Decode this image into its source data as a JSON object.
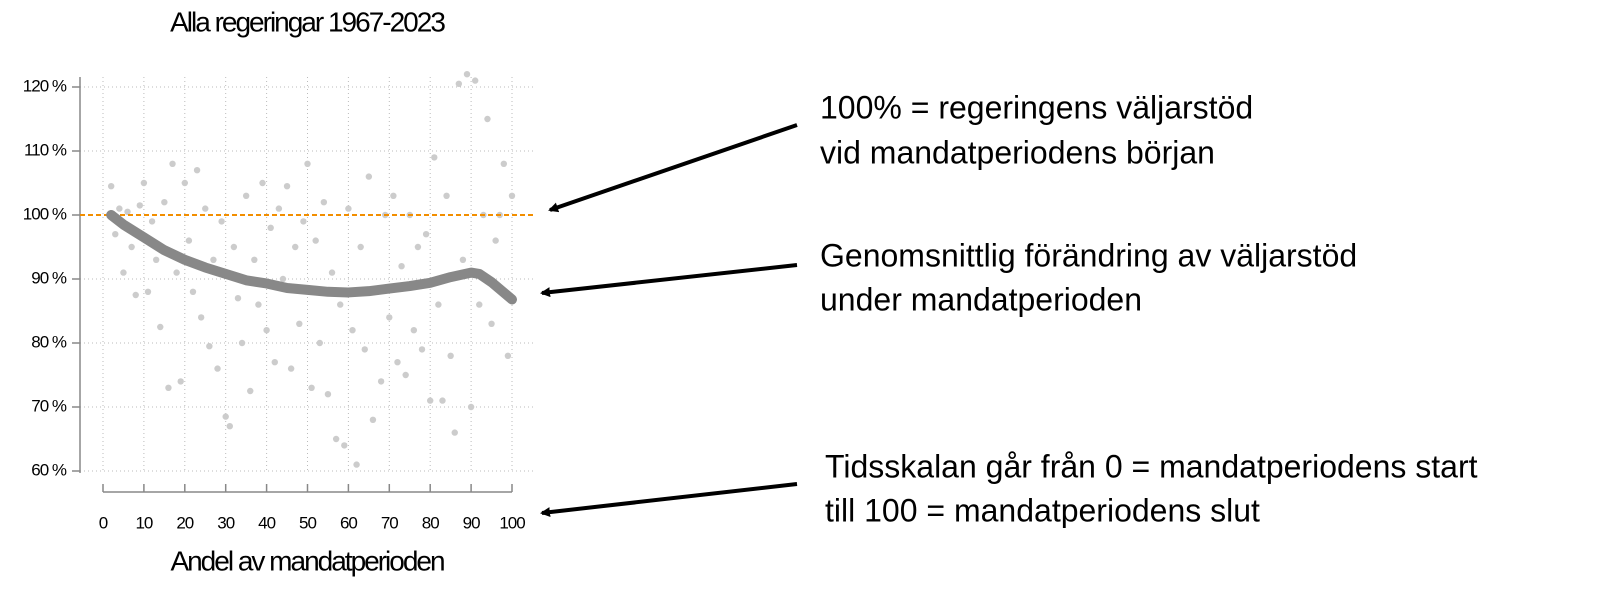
{
  "chart_data": {
    "type": "scatter",
    "title": "Alla regeringar 1967-2023",
    "x_label": "Andel av mandatperioden",
    "xlim": [
      0,
      100
    ],
    "ylim": [
      60,
      120
    ],
    "xticks": [
      0,
      10,
      20,
      30,
      40,
      50,
      60,
      70,
      80,
      90,
      100
    ],
    "yticks": [
      {
        "value": 60,
        "label": "60 %"
      },
      {
        "value": 70,
        "label": "70 %"
      },
      {
        "value": 80,
        "label": "80 %"
      },
      {
        "value": 90,
        "label": "90 %"
      },
      {
        "value": 100,
        "label": "100 %"
      },
      {
        "value": 110,
        "label": "110 %"
      },
      {
        "value": 120,
        "label": "120 %"
      }
    ],
    "grid": true,
    "reference_line": {
      "value": 100,
      "color": "#f28e00"
    },
    "series": [
      {
        "color": "#cccccc",
        "x": [
          2,
          3,
          4,
          5,
          6,
          7,
          8,
          9,
          10,
          11,
          12,
          13,
          14,
          15,
          16,
          17,
          18,
          19,
          20,
          21,
          22,
          23,
          24,
          25,
          26,
          27,
          28,
          29,
          30,
          31,
          32,
          33,
          34,
          35,
          36,
          37,
          38,
          39,
          40,
          41,
          42,
          43,
          44,
          45,
          46,
          47,
          48,
          49,
          50,
          51,
          52,
          53,
          54,
          55,
          56,
          57,
          58,
          59,
          60,
          61,
          62,
          63,
          64,
          65,
          66,
          67,
          68,
          69,
          70,
          71,
          72,
          73,
          74,
          75,
          76,
          77,
          78,
          79,
          80,
          81,
          82,
          83,
          84,
          85,
          86,
          87,
          88,
          89,
          90,
          91,
          92,
          93,
          94,
          95,
          96,
          97,
          98,
          99,
          100
        ],
        "values": [
          104.5,
          97,
          101,
          91,
          100.5,
          95,
          87.5,
          101.5,
          105,
          88,
          99,
          93,
          82.5,
          102,
          73,
          108,
          91,
          74,
          105,
          96,
          88,
          107,
          84,
          101,
          79.5,
          93,
          76,
          99,
          68.5,
          67,
          95,
          87,
          80,
          103,
          72.5,
          93,
          86,
          105,
          82,
          98,
          77,
          101,
          90,
          104.5,
          76,
          95,
          83,
          99,
          108,
          73,
          96,
          80,
          102,
          72,
          91,
          65,
          86,
          64,
          101,
          82,
          61,
          95,
          79,
          106,
          68,
          88,
          74,
          100,
          84,
          103,
          77,
          92,
          75,
          100,
          82,
          95,
          79,
          97,
          71,
          109,
          86,
          71,
          103,
          78,
          66,
          120.5,
          93,
          122,
          70,
          121,
          86,
          100,
          115,
          83,
          96,
          100,
          108,
          78,
          103
        ]
      },
      {
        "color": "#888888",
        "x": [
          2,
          5,
          10,
          15,
          20,
          25,
          30,
          35,
          40,
          45,
          50,
          55,
          60,
          65,
          70,
          75,
          80,
          85,
          90,
          92,
          95,
          100
        ],
        "values": [
          100,
          98.5,
          96.5,
          94.5,
          93,
          91.8,
          90.8,
          89.8,
          89.3,
          88.6,
          88.3,
          88,
          87.9,
          88.1,
          88.5,
          88.9,
          89.4,
          90.3,
          91,
          90.8,
          89.5,
          86.8
        ]
      }
    ],
    "annotations": [
      [
        "100% = regeringens väljarstöd",
        "vid mandatperiodens början"
      ],
      [
        "Genomsnittlig förändring av väljarstöd",
        "under mandatperioden"
      ],
      [
        "Tidsskalan går från 0 = mandatperiodens start",
        "till 100 = mandatperiodens slut"
      ]
    ]
  }
}
